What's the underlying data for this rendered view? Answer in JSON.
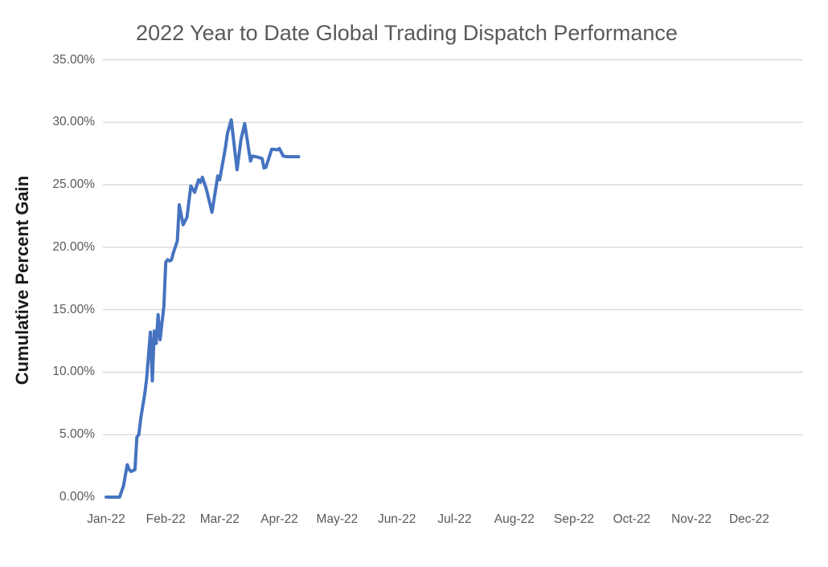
{
  "chart_data": {
    "type": "line",
    "title": "2022 Year to Date Global Trading Dispatch Performance",
    "xlabel": "",
    "ylabel": "Cumulative Percent Gain",
    "legend": "none",
    "grid": "horizontal only, no gridline at 0%",
    "ylim": [
      0,
      35
    ],
    "x_range": [
      "2022-01-01",
      "2022-12-31"
    ],
    "y_ticks": [
      {
        "value": 0,
        "label": "0.00%"
      },
      {
        "value": 5,
        "label": "5.00%"
      },
      {
        "value": 10,
        "label": "10.00%"
      },
      {
        "value": 15,
        "label": "15.00%"
      },
      {
        "value": 20,
        "label": "20.00%"
      },
      {
        "value": 25,
        "label": "25.00%"
      },
      {
        "value": 30,
        "label": "30.00%"
      },
      {
        "value": 35,
        "label": "35.00%"
      }
    ],
    "x_ticks": [
      {
        "date": "2022-01-01",
        "label": "Jan-22"
      },
      {
        "date": "2022-02-01",
        "label": "Feb-22"
      },
      {
        "date": "2022-03-01",
        "label": "Mar-22"
      },
      {
        "date": "2022-04-01",
        "label": "Apr-22"
      },
      {
        "date": "2022-05-01",
        "label": "May-22"
      },
      {
        "date": "2022-06-01",
        "label": "Jun-22"
      },
      {
        "date": "2022-07-01",
        "label": "Jul-22"
      },
      {
        "date": "2022-08-01",
        "label": "Aug-22"
      },
      {
        "date": "2022-09-01",
        "label": "Sep-22"
      },
      {
        "date": "2022-10-01",
        "label": "Oct-22"
      },
      {
        "date": "2022-11-01",
        "label": "Nov-22"
      },
      {
        "date": "2022-12-01",
        "label": "Dec-22"
      }
    ],
    "series": [
      {
        "name": "Cumulative Percent Gain",
        "color": "#4573C0",
        "line_width": 4,
        "points": [
          {
            "date": "2022-01-01",
            "value": 0.0
          },
          {
            "date": "2022-01-05",
            "value": 0.0
          },
          {
            "date": "2022-01-08",
            "value": 0.0
          },
          {
            "date": "2022-01-10",
            "value": 0.9
          },
          {
            "date": "2022-01-12",
            "value": 2.6
          },
          {
            "date": "2022-01-13",
            "value": 2.2
          },
          {
            "date": "2022-01-14",
            "value": 2.05
          },
          {
            "date": "2022-01-16",
            "value": 2.2
          },
          {
            "date": "2022-01-17",
            "value": 4.8
          },
          {
            "date": "2022-01-18",
            "value": 5.0
          },
          {
            "date": "2022-01-19",
            "value": 6.3
          },
          {
            "date": "2022-01-21",
            "value": 8.2
          },
          {
            "date": "2022-01-22",
            "value": 9.4
          },
          {
            "date": "2022-01-24",
            "value": 13.2
          },
          {
            "date": "2022-01-25",
            "value": 9.3
          },
          {
            "date": "2022-01-26",
            "value": 13.3
          },
          {
            "date": "2022-01-27",
            "value": 12.3
          },
          {
            "date": "2022-01-28",
            "value": 14.6
          },
          {
            "date": "2022-01-29",
            "value": 12.6
          },
          {
            "date": "2022-01-31",
            "value": 15.3
          },
          {
            "date": "2022-02-01",
            "value": 18.8
          },
          {
            "date": "2022-02-02",
            "value": 19.0
          },
          {
            "date": "2022-02-03",
            "value": 18.9
          },
          {
            "date": "2022-02-04",
            "value": 19.0
          },
          {
            "date": "2022-02-05",
            "value": 19.6
          },
          {
            "date": "2022-02-07",
            "value": 20.5
          },
          {
            "date": "2022-02-08",
            "value": 23.4
          },
          {
            "date": "2022-02-10",
            "value": 21.8
          },
          {
            "date": "2022-02-12",
            "value": 22.4
          },
          {
            "date": "2022-02-14",
            "value": 24.9
          },
          {
            "date": "2022-02-16",
            "value": 24.4
          },
          {
            "date": "2022-02-18",
            "value": 25.4
          },
          {
            "date": "2022-02-19",
            "value": 25.2
          },
          {
            "date": "2022-02-20",
            "value": 25.6
          },
          {
            "date": "2022-02-22",
            "value": 24.7
          },
          {
            "date": "2022-02-25",
            "value": 22.8
          },
          {
            "date": "2022-02-28",
            "value": 25.7
          },
          {
            "date": "2022-03-01",
            "value": 25.4
          },
          {
            "date": "2022-03-04",
            "value": 28.0
          },
          {
            "date": "2022-03-05",
            "value": 29.1
          },
          {
            "date": "2022-03-07",
            "value": 30.2
          },
          {
            "date": "2022-03-09",
            "value": 27.5
          },
          {
            "date": "2022-03-10",
            "value": 26.2
          },
          {
            "date": "2022-03-12",
            "value": 28.6
          },
          {
            "date": "2022-03-14",
            "value": 29.9
          },
          {
            "date": "2022-03-16",
            "value": 27.9
          },
          {
            "date": "2022-03-17",
            "value": 26.9
          },
          {
            "date": "2022-03-18",
            "value": 27.3
          },
          {
            "date": "2022-03-21",
            "value": 27.2
          },
          {
            "date": "2022-03-23",
            "value": 27.1
          },
          {
            "date": "2022-03-24",
            "value": 26.35
          },
          {
            "date": "2022-03-25",
            "value": 26.4
          },
          {
            "date": "2022-03-28",
            "value": 27.85
          },
          {
            "date": "2022-03-31",
            "value": 27.8
          },
          {
            "date": "2022-04-01",
            "value": 27.9
          },
          {
            "date": "2022-04-03",
            "value": 27.3
          },
          {
            "date": "2022-04-05",
            "value": 27.25
          },
          {
            "date": "2022-04-11",
            "value": 27.25
          }
        ]
      }
    ],
    "colors": {
      "title_text": "#595959",
      "tick_text": "#595959",
      "axis_title_text": "#1A1A1A",
      "gridline": "#D6D6D6",
      "background": "#FFFFFF",
      "line": "#4573C0"
    }
  }
}
